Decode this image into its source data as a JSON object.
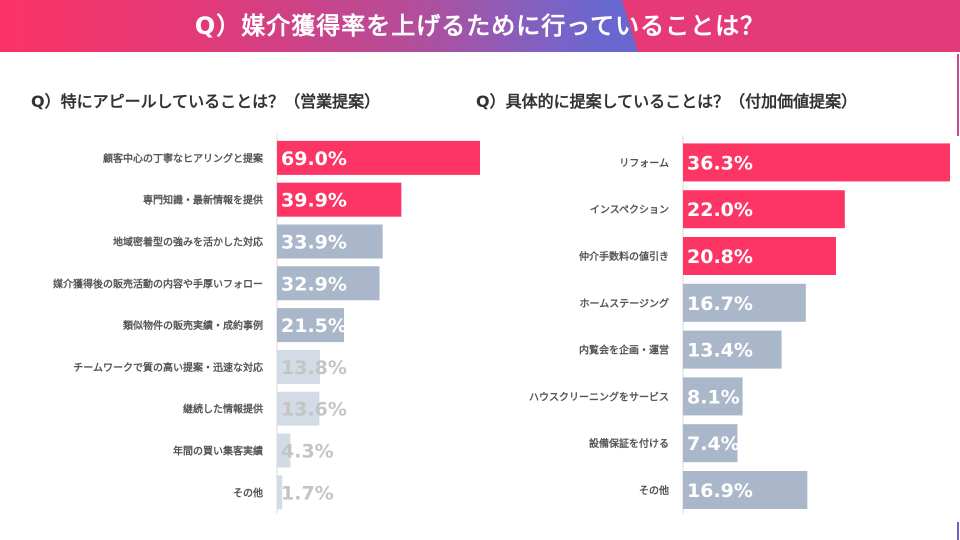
{
  "header": {
    "title": "Q）媒介獲得率を上げるために行っていることは？"
  },
  "colors": {
    "highlight": "#fd3565",
    "mid": "#aab6c9",
    "light": "#d3dbe6",
    "light_text": "#c4c4c4",
    "axis": "#d9d9d9"
  },
  "chart_data": [
    {
      "type": "bar",
      "orientation": "horizontal",
      "title": "Q）特にアピールしていることは？（営業提案）",
      "xlabel": "",
      "ylabel": "",
      "unit": "%",
      "xlim": [
        0,
        69
      ],
      "grid": false,
      "categories": [
        "顧客中心の丁寧なヒアリングと提案",
        "専門知識・最新情報を提供",
        "地域密着型の強みを活かした対応",
        "媒介獲得後の販売活動の内容や手厚いフォロー",
        "類似物件の販売実績・成約事例",
        "チームワークで質の高い提案・迅速な対応",
        "継続した情報提供",
        "年間の買い集客実績",
        "その他"
      ],
      "values": [
        69.0,
        39.9,
        33.9,
        32.9,
        21.5,
        13.8,
        13.6,
        4.3,
        1.7
      ],
      "labels": [
        "69.0%",
        "39.9%",
        "33.9%",
        "32.9%",
        "21.5%",
        "13.8%",
        "13.6%",
        "4.3%",
        "1.7%"
      ],
      "tiers": [
        "highlight",
        "highlight",
        "mid",
        "mid",
        "mid",
        "light",
        "light",
        "light",
        "light"
      ]
    },
    {
      "type": "bar",
      "orientation": "horizontal",
      "title": "Q）具体的に提案していることは？（付加価値提案）",
      "xlabel": "",
      "ylabel": "",
      "unit": "%",
      "xlim": [
        0,
        36.3
      ],
      "grid": false,
      "categories": [
        "リフォーム",
        "インスペクション",
        "仲介手数料の値引き",
        "ホームステージング",
        "内覧会を企画・運営",
        "ハウスクリーニングをサービス",
        "設備保証を付ける",
        "その他"
      ],
      "values": [
        36.3,
        22.0,
        20.8,
        16.7,
        13.4,
        8.1,
        7.4,
        16.9
      ],
      "labels": [
        "36.3%",
        "22.0%",
        "20.8%",
        "16.7%",
        "13.4%",
        "8.1%",
        "7.4%",
        "16.9%"
      ],
      "tiers": [
        "highlight",
        "highlight",
        "highlight",
        "mid",
        "mid",
        "mid",
        "mid",
        "mid"
      ]
    }
  ]
}
